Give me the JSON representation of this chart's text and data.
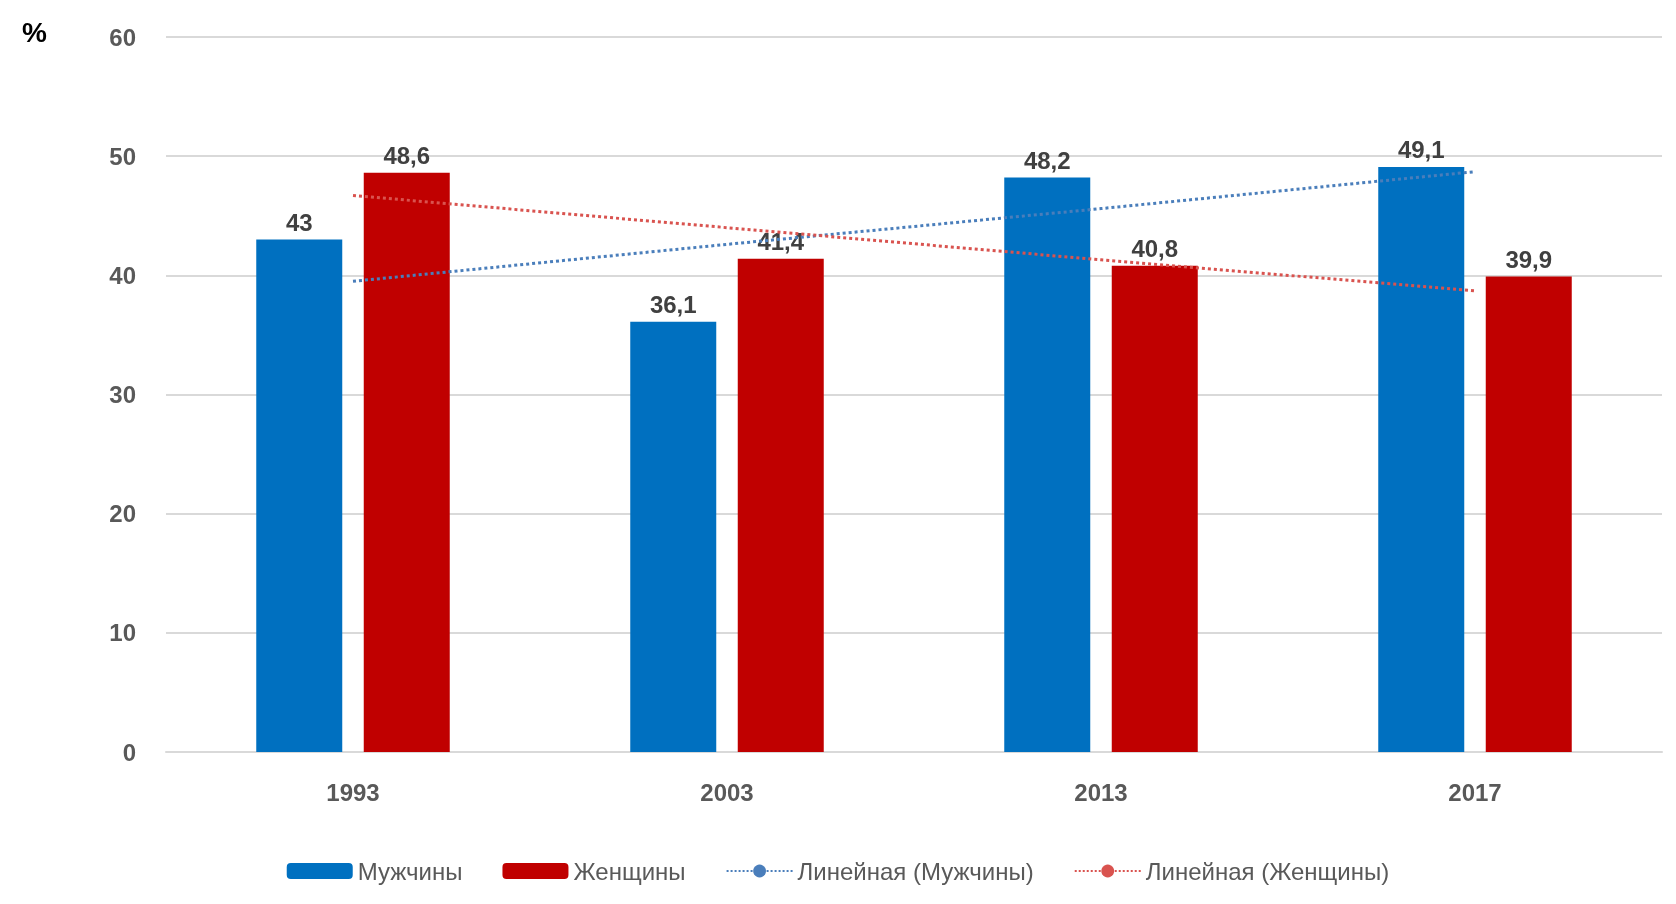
{
  "chart_data": {
    "type": "bar",
    "ylabel": "%",
    "categories": [
      "1993",
      "2003",
      "2013",
      "2017"
    ],
    "series": [
      {
        "name": "Мужчины",
        "color": "#0070c0",
        "values": [
          43,
          36.1,
          48.2,
          49.1
        ],
        "value_labels": [
          "43",
          "36,1",
          "48,2",
          "49,1"
        ]
      },
      {
        "name": "Женщины",
        "color": "#c00000",
        "values": [
          48.6,
          41.4,
          40.8,
          39.9
        ],
        "value_labels": [
          "48,6",
          "41,4",
          "40,8",
          "39,9"
        ]
      },
      {
        "name": "Линейная (Мужчины)",
        "type": "line",
        "color": "#4a7ebb",
        "line_style": "dotted",
        "marker": "none",
        "values": [
          39.5,
          42.6,
          45.6,
          48.7
        ]
      },
      {
        "name": "Линейная (Женщины)",
        "type": "line",
        "color": "#d9534f",
        "line_style": "dotted",
        "marker": "none",
        "values": [
          46.7,
          44.0,
          41.3,
          38.7
        ]
      }
    ],
    "ylim": [
      0,
      60
    ],
    "yticks": [
      0,
      10,
      20,
      30,
      40,
      50,
      60
    ],
    "grid": "y",
    "legend": "bottom"
  }
}
